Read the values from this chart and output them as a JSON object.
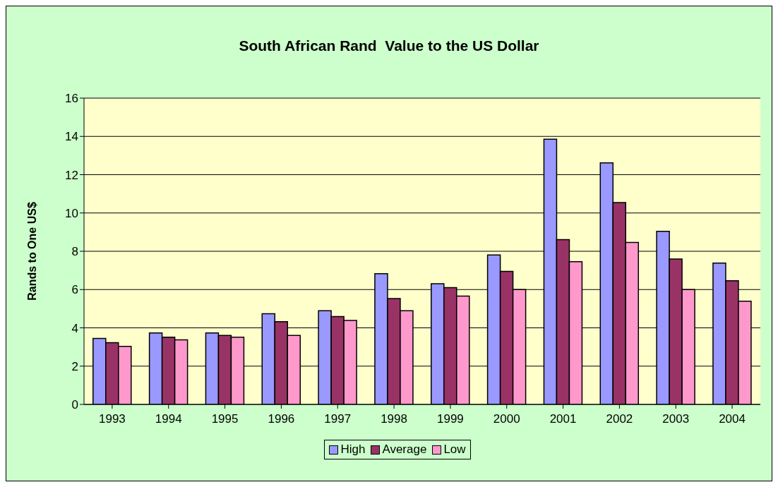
{
  "chart_data": {
    "type": "bar",
    "title": "South African Rand  Value to the US Dollar",
    "ylabel": "Rands to One US$",
    "categories": [
      "1993",
      "1994",
      "1995",
      "1996",
      "1997",
      "1998",
      "1999",
      "2000",
      "2001",
      "2002",
      "2003",
      "2004"
    ],
    "series": [
      {
        "name": "High",
        "color": "#9999ff",
        "values": [
          3.45,
          3.73,
          3.73,
          4.74,
          4.89,
          6.83,
          6.3,
          7.81,
          13.85,
          12.62,
          9.04,
          7.38
        ]
      },
      {
        "name": "Average",
        "color": "#993366",
        "values": [
          3.23,
          3.51,
          3.6,
          4.32,
          4.59,
          5.53,
          6.1,
          6.95,
          8.61,
          10.54,
          7.59,
          6.46
        ]
      },
      {
        "name": "Low",
        "color": "#ff99cc",
        "values": [
          3.03,
          3.37,
          3.51,
          3.6,
          4.39,
          4.89,
          5.66,
          6.0,
          7.46,
          8.46,
          6.0,
          5.39
        ]
      }
    ],
    "ylim": [
      0,
      16
    ],
    "yticks": [
      0,
      2,
      4,
      6,
      8,
      10,
      12,
      14,
      16
    ],
    "grid": "y",
    "legend": "bottom"
  }
}
